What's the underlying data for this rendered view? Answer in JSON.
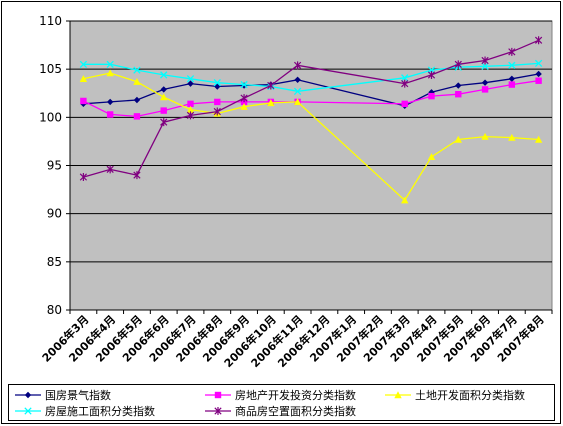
{
  "chart_data": {
    "type": "line",
    "categories": [
      "2006年3月",
      "2006年4月",
      "2006年5月",
      "2006年6月",
      "2006年7月",
      "2006年8月",
      "2006年9月",
      "2006年10月",
      "2006年11月",
      "2006年12月",
      "2007年1月",
      "2007年2月",
      "2007年3月",
      "2007年4月",
      "2007年5月",
      "2007年6月",
      "2007年7月",
      "2007年8月"
    ],
    "ylim": [
      80,
      110
    ],
    "yticks": [
      80,
      85,
      90,
      95,
      100,
      105,
      110
    ],
    "grid": true,
    "plot_background": "#c0c0c0",
    "legend_position": "bottom",
    "series": [
      {
        "name": "国房景气指数",
        "color": "#000080",
        "marker": "diamond",
        "values": [
          101.4,
          101.6,
          101.8,
          102.9,
          103.5,
          103.2,
          103.3,
          103.4,
          103.9,
          null,
          null,
          null,
          101.2,
          102.6,
          103.3,
          103.6,
          104.0,
          104.5
        ]
      },
      {
        "name": "房地产开发投资分类指数",
        "color": "#ff00ff",
        "marker": "square",
        "values": [
          101.7,
          100.3,
          100.1,
          100.7,
          101.4,
          101.6,
          101.6,
          101.6,
          101.6,
          null,
          null,
          null,
          101.4,
          102.2,
          102.4,
          102.9,
          103.4,
          103.8
        ]
      },
      {
        "name": "土地开发面积分类指数",
        "color": "#ffff00",
        "marker": "triangle",
        "values": [
          104.0,
          104.6,
          103.7,
          102.1,
          100.8,
          100.4,
          101.1,
          101.5,
          101.6,
          null,
          null,
          null,
          91.4,
          95.9,
          97.7,
          98.0,
          97.9,
          97.7
        ]
      },
      {
        "name": "房屋施工面积分类指数",
        "color": "#00ffff",
        "marker": "x",
        "values": [
          105.5,
          105.5,
          104.9,
          104.4,
          104.0,
          103.6,
          103.4,
          103.2,
          102.7,
          null,
          null,
          null,
          104.1,
          104.9,
          105.2,
          105.3,
          105.4,
          105.6
        ]
      },
      {
        "name": "商品房空置面积分类指数",
        "color": "#800080",
        "marker": "star",
        "values": [
          93.8,
          94.6,
          94.0,
          99.5,
          100.2,
          100.6,
          102.0,
          103.3,
          105.4,
          null,
          null,
          null,
          103.5,
          104.4,
          105.5,
          105.9,
          106.8,
          108.0
        ]
      }
    ]
  }
}
